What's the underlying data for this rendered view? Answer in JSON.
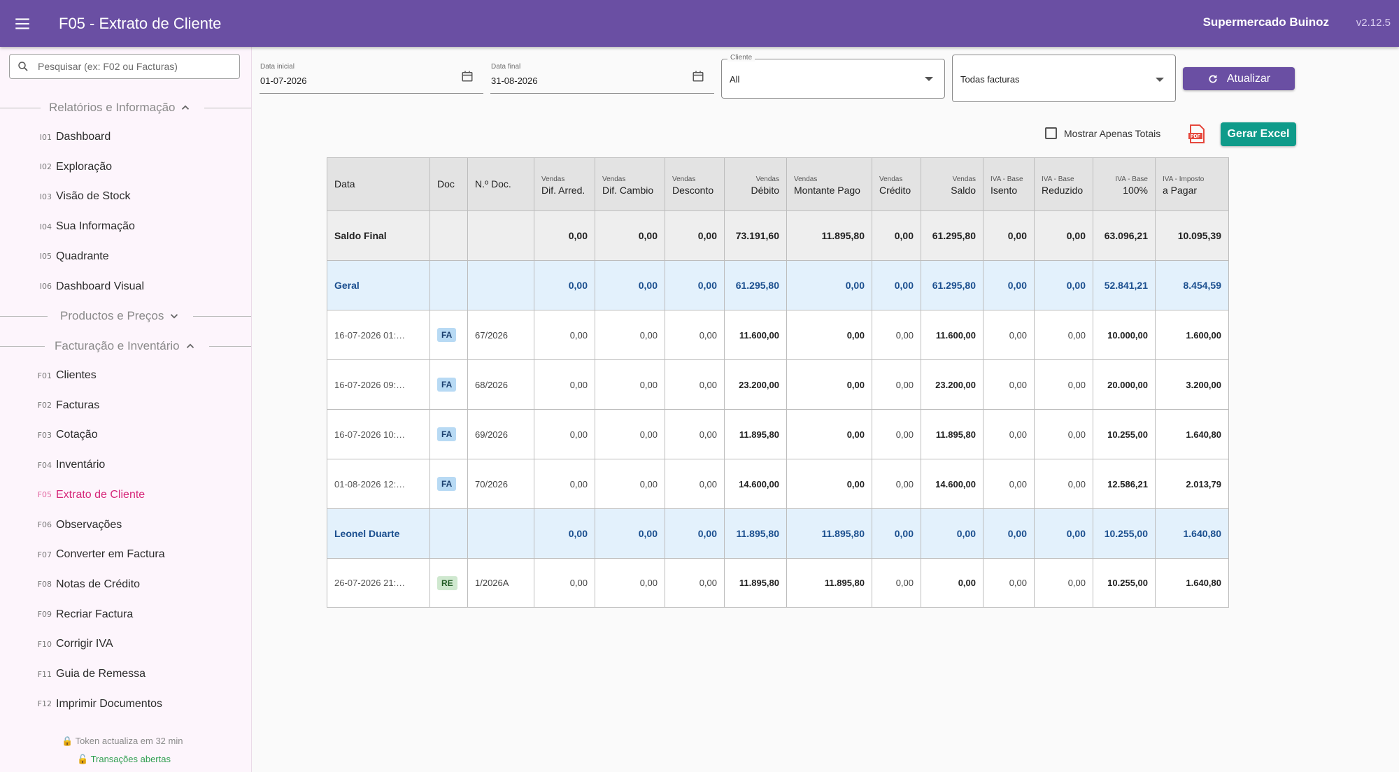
{
  "app": {
    "title": "F05 - Extrato de Cliente",
    "company": "Supermercado Buinoz",
    "version": "v2.12.5"
  },
  "sidebar": {
    "search_placeholder": "Pesquisar (ex: F02 ou Facturas)",
    "sections": [
      {
        "label": "Relatórios e Informação",
        "expanded": true
      },
      {
        "label": "Productos e Preços",
        "expanded": false
      },
      {
        "label": "Facturação e Inventário",
        "expanded": true
      }
    ],
    "reports": [
      {
        "code": "I01",
        "label": "Dashboard"
      },
      {
        "code": "I02",
        "label": "Exploração"
      },
      {
        "code": "I03",
        "label": "Visão de Stock"
      },
      {
        "code": "I04",
        "label": "Sua Informação"
      },
      {
        "code": "I05",
        "label": "Quadrante"
      },
      {
        "code": "I06",
        "label": "Dashboard Visual"
      }
    ],
    "billing": [
      {
        "code": "F01",
        "label": "Clientes"
      },
      {
        "code": "F02",
        "label": "Facturas"
      },
      {
        "code": "F03",
        "label": "Cotação"
      },
      {
        "code": "F04",
        "label": "Inventário"
      },
      {
        "code": "F05",
        "label": "Extrato de Cliente"
      },
      {
        "code": "F06",
        "label": "Observações"
      },
      {
        "code": "F07",
        "label": "Converter em Factura"
      },
      {
        "code": "F08",
        "label": "Notas de Crédito"
      },
      {
        "code": "F09",
        "label": "Recriar Factura"
      },
      {
        "code": "F10",
        "label": "Corrigir IVA"
      },
      {
        "code": "F11",
        "label": "Guia de Remessa"
      },
      {
        "code": "F12",
        "label": "Imprimir Documentos"
      }
    ],
    "active_item": "F05",
    "footer_token": "🔒 Token actualiza em 32 min",
    "footer_transactions": "🔓 Transações abertas"
  },
  "filters": {
    "start_label": "Data inicial",
    "start_value": "01-07-2026",
    "end_label": "Data final",
    "end_value": "31-08-2026",
    "client_label": "Cliente",
    "client_value": "All",
    "invoice_filter": "Todas facturas",
    "refresh_label": "Atualizar",
    "only_totals_label": "Mostrar Apenas Totais",
    "only_totals_checked": false,
    "excel_label": "Gerar Excel"
  },
  "table": {
    "headers": [
      {
        "top": "",
        "bottom": "Data"
      },
      {
        "top": "",
        "bottom": "Doc"
      },
      {
        "top": "",
        "bottom": "N.º Doc."
      },
      {
        "top": "Vendas",
        "bottom": "Dif. Arred."
      },
      {
        "top": "Vendas",
        "bottom": "Dif. Cambio"
      },
      {
        "top": "Vendas",
        "bottom": "Desconto"
      },
      {
        "top": "Vendas",
        "bottom": "Débito"
      },
      {
        "top": "Vendas",
        "bottom": "Montante Pago"
      },
      {
        "top": "Vendas",
        "bottom": "Crédito"
      },
      {
        "top": "Vendas",
        "bottom": "Saldo"
      },
      {
        "top": "IVA - Base",
        "bottom": "Isento"
      },
      {
        "top": "IVA - Base",
        "bottom": "Reduzido"
      },
      {
        "top": "IVA - Base",
        "bottom": "100%"
      },
      {
        "top": "IVA - Imposto",
        "bottom": "a Pagar"
      }
    ],
    "rows": [
      {
        "type": "final",
        "cells": [
          "Saldo Final",
          "",
          "",
          "0,00",
          "0,00",
          "0,00",
          "73.191,60",
          "11.895,80",
          "0,00",
          "61.295,80",
          "0,00",
          "0,00",
          "63.096,21",
          "10.095,39"
        ]
      },
      {
        "type": "group",
        "cells": [
          "Geral",
          "",
          "",
          "0,00",
          "0,00",
          "0,00",
          "61.295,80",
          "0,00",
          "0,00",
          "61.295,80",
          "0,00",
          "0,00",
          "52.841,21",
          "8.454,59"
        ]
      },
      {
        "type": "row",
        "cells": [
          "16-07-2026 01:…",
          "FA",
          "67/2026",
          "0,00",
          "0,00",
          "0,00",
          "11.600,00",
          "0,00",
          "0,00",
          "11.600,00",
          "0,00",
          "0,00",
          "10.000,00",
          "1.600,00"
        ]
      },
      {
        "type": "row",
        "cells": [
          "16-07-2026 09:…",
          "FA",
          "68/2026",
          "0,00",
          "0,00",
          "0,00",
          "23.200,00",
          "0,00",
          "0,00",
          "23.200,00",
          "0,00",
          "0,00",
          "20.000,00",
          "3.200,00"
        ]
      },
      {
        "type": "row",
        "cells": [
          "16-07-2026 10:…",
          "FA",
          "69/2026",
          "0,00",
          "0,00",
          "0,00",
          "11.895,80",
          "0,00",
          "0,00",
          "11.895,80",
          "0,00",
          "0,00",
          "10.255,00",
          "1.640,80"
        ]
      },
      {
        "type": "row",
        "cells": [
          "01-08-2026 12:…",
          "FA",
          "70/2026",
          "0,00",
          "0,00",
          "0,00",
          "14.600,00",
          "0,00",
          "0,00",
          "14.600,00",
          "0,00",
          "0,00",
          "12.586,21",
          "2.013,79"
        ]
      },
      {
        "type": "group",
        "cells": [
          "Leonel Duarte",
          "",
          "",
          "0,00",
          "0,00",
          "0,00",
          "11.895,80",
          "11.895,80",
          "0,00",
          "0,00",
          "0,00",
          "0,00",
          "10.255,00",
          "1.640,80"
        ]
      },
      {
        "type": "row",
        "cells": [
          "26-07-2026 21:…",
          "RE",
          "1/2026A",
          "0,00",
          "0,00",
          "0,00",
          "11.895,80",
          "11.895,80",
          "0,00",
          "0,00",
          "0,00",
          "0,00",
          "10.255,00",
          "1.640,80"
        ]
      }
    ]
  },
  "colors": {
    "appbar": "#6a4fa3",
    "active_nav": "#d6287a",
    "excel_button": "#0f9b8a",
    "group_row": "#e3f1fc",
    "group_text": "#1b4f8f"
  }
}
